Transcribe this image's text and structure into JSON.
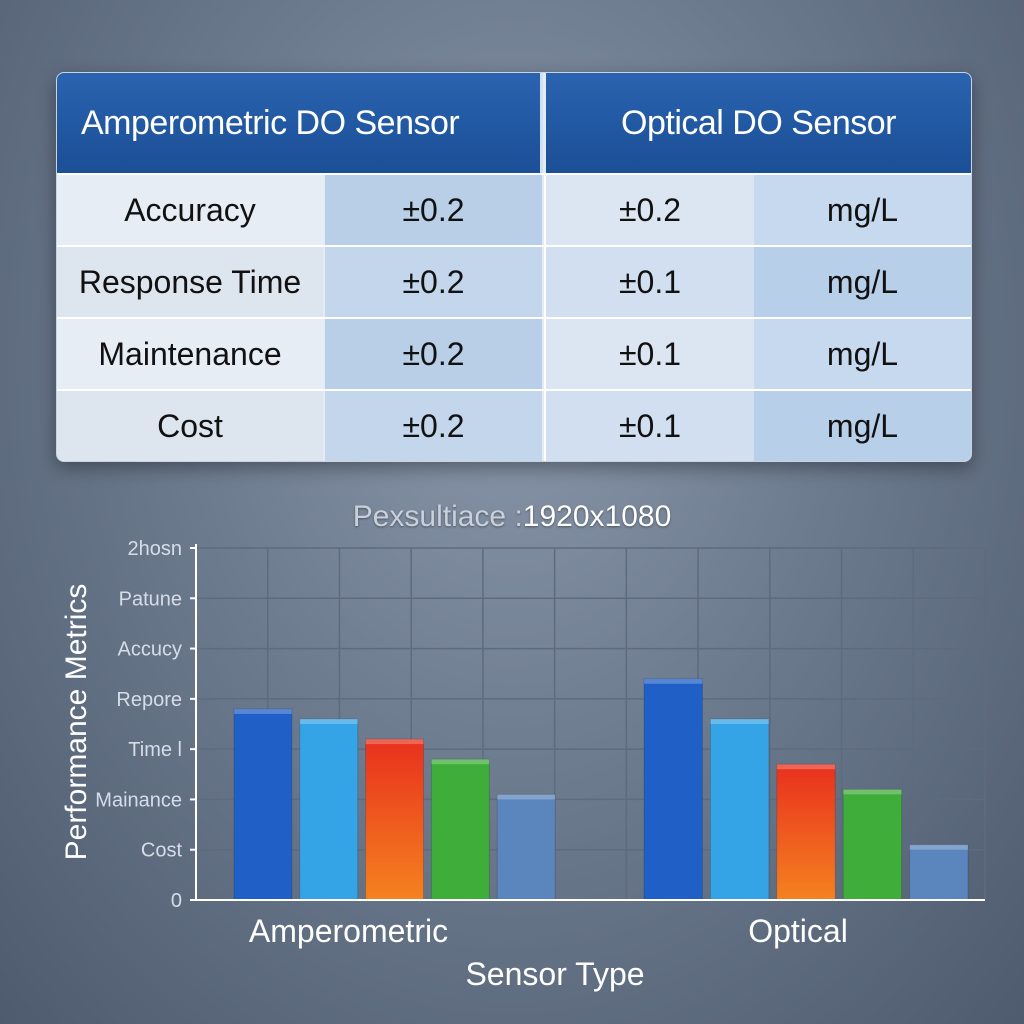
{
  "table": {
    "headers": [
      "Amperometric DO Sensor",
      "Optical DO Sensor"
    ],
    "rows": [
      {
        "metric": "Accuracy",
        "amperometric": "±0.2",
        "optical": "±0.2",
        "unit": "mg/L"
      },
      {
        "metric": "Response Time",
        "amperometric": "±0.2",
        "optical": "±0.1",
        "unit": "mg/L"
      },
      {
        "metric": "Maintenance",
        "amperometric": "±0.2",
        "optical": "±0.1",
        "unit": "mg/L"
      },
      {
        "metric": "Cost",
        "amperometric": "±0.2",
        "optical": "±0.1",
        "unit": "mg/L"
      }
    ]
  },
  "chart_data": {
    "type": "bar",
    "title_prefix": "Pexsultiace :",
    "title": "1920x1080",
    "xlabel": "Sensor Type",
    "ylabel": "Performance Metrics",
    "categories": [
      "Amperometric",
      "Optical"
    ],
    "y_tick_labels": [
      "0",
      "Cost",
      "Mainance",
      "Time l",
      "Repore",
      "Accucy",
      "Patune",
      "2hosn"
    ],
    "ylim": [
      0,
      7
    ],
    "grid": true,
    "series": [
      {
        "color": "#1f5fc6",
        "values": [
          3.8,
          4.4
        ]
      },
      {
        "color": "#35a4e6",
        "values": [
          3.6,
          3.6
        ]
      },
      {
        "color": "#e8301e",
        "values": [
          3.2,
          2.7
        ]
      },
      {
        "color": "#3fad3a",
        "values": [
          2.8,
          2.2
        ]
      },
      {
        "color": "#5b86bd",
        "values": [
          2.1,
          1.1
        ]
      }
    ]
  }
}
